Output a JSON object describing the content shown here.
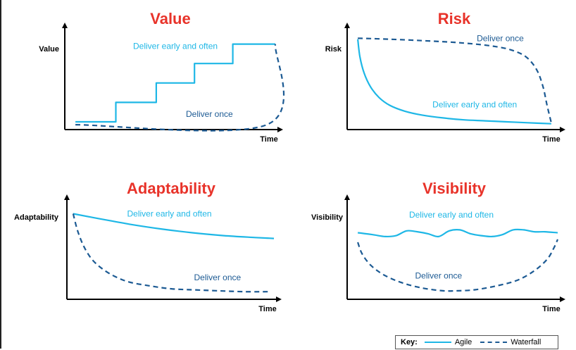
{
  "colors": {
    "agile": "#1eb7e6",
    "waterfall": "#1c5a93",
    "title": "#e8332a",
    "axis": "#000000"
  },
  "chart_data": [
    {
      "id": "value",
      "type": "line",
      "title": "Value",
      "ylabel": "Value",
      "xlabel": "Time",
      "xlim": [
        0,
        1
      ],
      "ylim": [
        0,
        1
      ],
      "series": [
        {
          "name": "Agile",
          "style": "solid",
          "step": true,
          "x": [
            0.05,
            0.24,
            0.24,
            0.43,
            0.43,
            0.61,
            0.61,
            0.79,
            0.79,
            0.99
          ],
          "y": [
            0.08,
            0.08,
            0.28,
            0.28,
            0.48,
            0.48,
            0.68,
            0.68,
            0.88,
            0.88
          ]
        },
        {
          "name": "Waterfall",
          "style": "dashed",
          "x": [
            0.05,
            0.95,
            0.99
          ],
          "y": [
            0.05,
            0.05,
            0.88
          ]
        }
      ],
      "annotations": [
        {
          "text": "Deliver early and often",
          "series": "Agile",
          "x": 0.52,
          "y": 0.83
        },
        {
          "text": "Deliver once",
          "series": "Waterfall",
          "x": 0.68,
          "y": 0.13
        }
      ]
    },
    {
      "id": "risk",
      "type": "line",
      "title": "Risk",
      "ylabel": "Risk",
      "xlabel": "Time",
      "xlim": [
        0,
        1
      ],
      "ylim": [
        0,
        1
      ],
      "series": [
        {
          "name": "Agile",
          "style": "solid",
          "x": [
            0.05,
            0.06,
            0.08,
            0.11,
            0.15,
            0.2,
            0.27,
            0.35,
            0.45,
            0.55,
            0.65,
            0.75,
            0.85,
            0.96
          ],
          "y": [
            0.93,
            0.75,
            0.58,
            0.44,
            0.33,
            0.25,
            0.19,
            0.15,
            0.12,
            0.1,
            0.09,
            0.08,
            0.07,
            0.06
          ]
        },
        {
          "name": "Waterfall",
          "style": "dashed",
          "x": [
            0.05,
            0.2,
            0.4,
            0.55,
            0.68,
            0.77,
            0.84,
            0.89,
            0.92,
            0.94,
            0.96
          ],
          "y": [
            0.94,
            0.93,
            0.91,
            0.89,
            0.86,
            0.82,
            0.75,
            0.62,
            0.45,
            0.25,
            0.07
          ]
        }
      ],
      "annotations": [
        {
          "text": "Deliver once",
          "series": "Waterfall",
          "x": 0.72,
          "y": 0.91
        },
        {
          "text": "Deliver early and often",
          "series": "Agile",
          "x": 0.6,
          "y": 0.23
        }
      ]
    },
    {
      "id": "adaptability",
      "type": "line",
      "title": "Adaptability",
      "ylabel": "Adaptability",
      "xlabel": "Time",
      "xlim": [
        0,
        1
      ],
      "ylim": [
        0,
        1
      ],
      "series": [
        {
          "name": "Agile",
          "style": "solid",
          "x": [
            0.03,
            0.15,
            0.3,
            0.45,
            0.6,
            0.75,
            0.9,
            0.99
          ],
          "y": [
            0.9,
            0.85,
            0.79,
            0.74,
            0.7,
            0.67,
            0.65,
            0.64
          ]
        },
        {
          "name": "Waterfall",
          "style": "dashed",
          "x": [
            0.03,
            0.05,
            0.08,
            0.12,
            0.17,
            0.23,
            0.3,
            0.4,
            0.5,
            0.6,
            0.72,
            0.85,
            0.97
          ],
          "y": [
            0.9,
            0.73,
            0.56,
            0.42,
            0.32,
            0.24,
            0.18,
            0.14,
            0.11,
            0.1,
            0.09,
            0.08,
            0.08
          ]
        }
      ],
      "annotations": [
        {
          "text": "Deliver early and often",
          "series": "Agile",
          "x": 0.49,
          "y": 0.87
        },
        {
          "text": "Deliver once",
          "series": "Waterfall",
          "x": 0.72,
          "y": 0.2
        }
      ]
    },
    {
      "id": "visibility",
      "type": "line",
      "title": "Visibility",
      "ylabel": "Visibility",
      "xlabel": "Time",
      "xlim": [
        0,
        1
      ],
      "ylim": [
        0,
        1
      ],
      "series": [
        {
          "name": "Agile",
          "style": "solid",
          "x": [
            0.05,
            0.12,
            0.18,
            0.23,
            0.28,
            0.33,
            0.38,
            0.43,
            0.48,
            0.53,
            0.58,
            0.63,
            0.68,
            0.73,
            0.78,
            0.83,
            0.88,
            0.93,
            0.99
          ],
          "y": [
            0.7,
            0.68,
            0.66,
            0.67,
            0.72,
            0.71,
            0.69,
            0.66,
            0.72,
            0.73,
            0.69,
            0.67,
            0.66,
            0.68,
            0.73,
            0.73,
            0.71,
            0.71,
            0.7
          ]
        },
        {
          "name": "Waterfall",
          "style": "dashed",
          "x": [
            0.05,
            0.07,
            0.11,
            0.17,
            0.25,
            0.35,
            0.45,
            0.52,
            0.6,
            0.7,
            0.8,
            0.88,
            0.94,
            0.97,
            0.99
          ],
          "y": [
            0.6,
            0.48,
            0.36,
            0.26,
            0.18,
            0.12,
            0.09,
            0.09,
            0.1,
            0.14,
            0.2,
            0.3,
            0.42,
            0.53,
            0.63
          ]
        }
      ],
      "annotations": [
        {
          "text": "Deliver early and often",
          "series": "Agile",
          "x": 0.49,
          "y": 0.86
        },
        {
          "text": "Deliver once",
          "series": "Waterfall",
          "x": 0.43,
          "y": 0.22
        }
      ]
    }
  ],
  "key": {
    "label": "Key:",
    "agile": "Agile",
    "waterfall": "Waterfall"
  }
}
